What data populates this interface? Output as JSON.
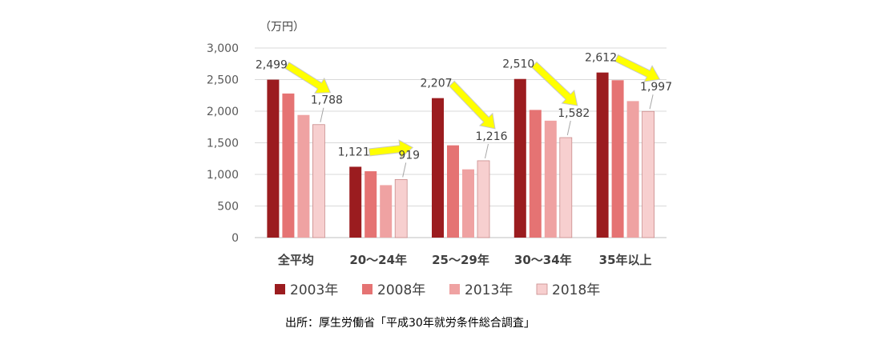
{
  "chart_data": {
    "type": "bar",
    "unit_label": "（万円）",
    "categories": [
      "全平均",
      "20～24年",
      "25～29年",
      "30～34年",
      "35年以上"
    ],
    "series": [
      {
        "name": "2003年",
        "values": [
          2499,
          1121,
          2207,
          2510,
          2612
        ],
        "color": "#9b1c1f"
      },
      {
        "name": "2008年",
        "values": [
          2280,
          1050,
          1460,
          2020,
          2490
        ],
        "color": "#e57373"
      },
      {
        "name": "2013年",
        "values": [
          1940,
          830,
          1080,
          1850,
          2160
        ],
        "color": "#efa2a2"
      },
      {
        "name": "2018年",
        "values": [
          1788,
          919,
          1216,
          1582,
          1997
        ],
        "color": "#f7cfcf"
      }
    ],
    "data_labels": [
      {
        "text": "2,499",
        "category": 0,
        "series": 0
      },
      {
        "text": "1,788",
        "category": 0,
        "series": 3
      },
      {
        "text": "1,121",
        "category": 1,
        "series": 0
      },
      {
        "text": "919",
        "category": 1,
        "series": 3
      },
      {
        "text": "2,207",
        "category": 2,
        "series": 0
      },
      {
        "text": "1,216",
        "category": 2,
        "series": 3
      },
      {
        "text": "2,510",
        "category": 3,
        "series": 0
      },
      {
        "text": "1,582",
        "category": 3,
        "series": 3
      },
      {
        "text": "2,612",
        "category": 4,
        "series": 0
      },
      {
        "text": "1,997",
        "category": 4,
        "series": 3
      }
    ],
    "y_ticks": [
      "0",
      "500",
      "1,000",
      "1,500",
      "2,000",
      "2,500",
      "3,000"
    ],
    "ylim": [
      0,
      3000
    ],
    "grid": true,
    "legend": "bottom",
    "arrow_color": "#ffff00",
    "source": "出所：厚生労働省「平成30年就労条件総合調査」"
  }
}
